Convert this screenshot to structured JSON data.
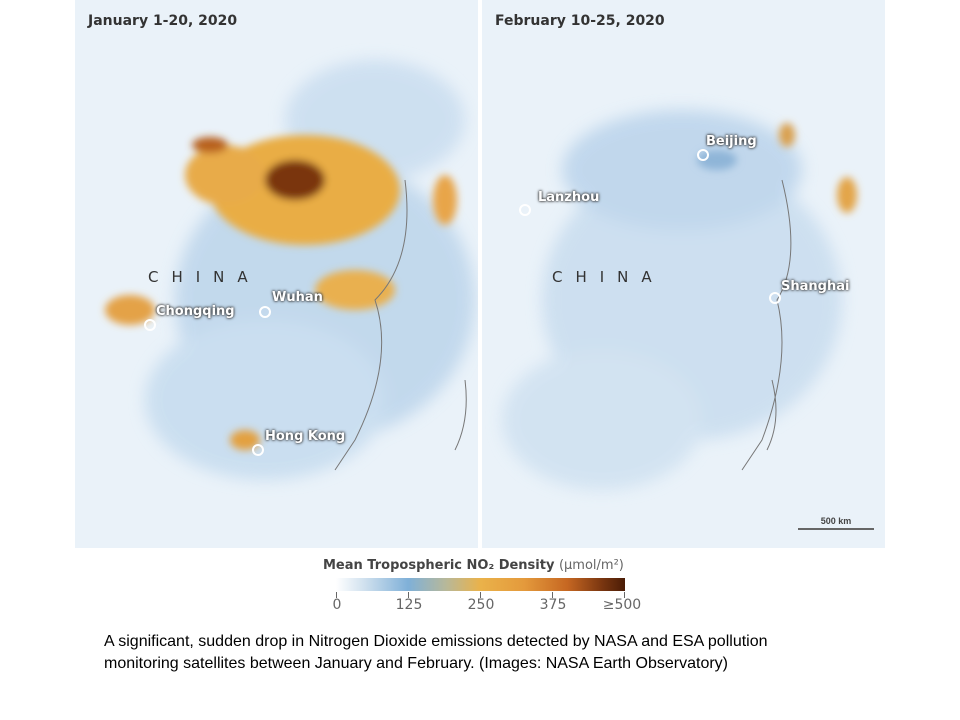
{
  "panels": [
    {
      "title": "January 1-20, 2020",
      "country_label": "CHINA",
      "cities": [
        "Chongqing",
        "Wuhan",
        "Hong Kong"
      ]
    },
    {
      "title": "February 10-25, 2020",
      "country_label": "CHINA",
      "cities": [
        "Beijing",
        "Lanzhou",
        "Shanghai"
      ],
      "scale_bar": "500 km"
    }
  ],
  "legend": {
    "title": "Mean Tropospheric NO₂ Density",
    "unit": "(μmol/m²)",
    "ticks": [
      "0",
      "125",
      "250",
      "375",
      "≥500"
    ],
    "colors": [
      "#ffffff",
      "#7fb0d8",
      "#eab24a",
      "#c66722",
      "#4a1c06"
    ]
  },
  "caption": "A significant, sudden drop in Nitrogen Dioxide emissions detected by NASA and ESA pollution monitoring satellites between January and February. (Images: NASA Earth Observatory)"
}
